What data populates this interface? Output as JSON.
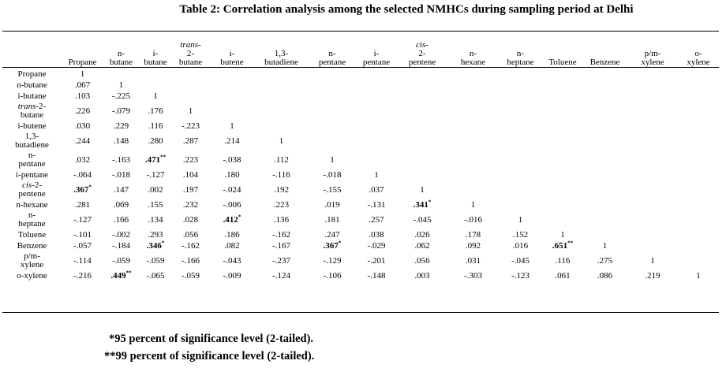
{
  "title": "Table 2: Correlation analysis among the selected NMHCs during sampling period at Delhi",
  "columns": [
    {
      "parts": [
        {
          "t": "Propane"
        }
      ]
    },
    {
      "parts": [
        {
          "t": "n-"
        },
        {
          "t": "butane"
        }
      ]
    },
    {
      "parts": [
        {
          "t": "i-"
        },
        {
          "t": "butane"
        }
      ]
    },
    {
      "parts": [
        {
          "t": "trans-",
          "i": true
        },
        {
          "t": "2-"
        },
        {
          "t": "butane"
        }
      ]
    },
    {
      "parts": [
        {
          "t": "i-"
        },
        {
          "t": "butene"
        }
      ]
    },
    {
      "parts": [
        {
          "t": "1,3-"
        },
        {
          "t": "butadiene"
        }
      ]
    },
    {
      "parts": [
        {
          "t": "n-"
        },
        {
          "t": "pentane"
        }
      ]
    },
    {
      "parts": [
        {
          "t": "i-"
        },
        {
          "t": "pentane"
        }
      ]
    },
    {
      "parts": [
        {
          "t": "cis-",
          "i": true
        },
        {
          "t": "2-"
        },
        {
          "t": "pentene"
        }
      ]
    },
    {
      "parts": [
        {
          "t": "n-"
        },
        {
          "t": "hexane"
        }
      ]
    },
    {
      "parts": [
        {
          "t": "n-"
        },
        {
          "t": "heptane"
        }
      ]
    },
    {
      "parts": [
        {
          "t": "Toluene"
        }
      ]
    },
    {
      "parts": [
        {
          "t": "Benzene"
        }
      ]
    },
    {
      "parts": [
        {
          "t": "p/m-"
        },
        {
          "t": "xylene"
        }
      ]
    },
    {
      "parts": [
        {
          "t": "o-"
        },
        {
          "t": "xylene"
        }
      ]
    }
  ],
  "rows": [
    {
      "label": [
        {
          "t": "Propane"
        }
      ],
      "cells": [
        "1"
      ]
    },
    {
      "label": [
        {
          "t": "n-butane"
        }
      ],
      "cells": [
        ".067",
        "1"
      ]
    },
    {
      "label": [
        {
          "t": "i-butane"
        }
      ],
      "cells": [
        ".103",
        "-.225",
        "1"
      ]
    },
    {
      "label": [
        {
          "t": "trans",
          "i": true
        },
        {
          "t": "-2-"
        },
        {
          "br": true
        },
        {
          "t": "butane"
        }
      ],
      "tall": true,
      "cells": [
        ".226",
        "-.079",
        ".176",
        "1"
      ]
    },
    {
      "label": [
        {
          "t": "i-butene"
        }
      ],
      "cells": [
        ".030",
        ".229",
        ".116",
        "-.223",
        "1"
      ]
    },
    {
      "label": [
        {
          "t": "1,3-"
        },
        {
          "br": true
        },
        {
          "t": "butadiene"
        }
      ],
      "tall": true,
      "cells": [
        ".244",
        ".148",
        ".280",
        ".287",
        ".214",
        "1"
      ]
    },
    {
      "label": [
        {
          "t": "n-"
        },
        {
          "br": true
        },
        {
          "t": "pentane"
        }
      ],
      "tall": true,
      "cells": [
        ".032",
        "-.163",
        {
          "v": ".471",
          "s": "**"
        },
        ".223",
        "-.038",
        ".112",
        "1"
      ]
    },
    {
      "label": [
        {
          "t": "i-pentane"
        }
      ],
      "cells": [
        "-.064",
        "-.018",
        "-.127",
        ".104",
        ".180",
        "-.116",
        "-.018",
        "1"
      ]
    },
    {
      "label": [
        {
          "t": "cis",
          "i": true
        },
        {
          "t": "-2-"
        },
        {
          "br": true
        },
        {
          "t": "pentene"
        }
      ],
      "tall": true,
      "cells": [
        {
          "v": ".367",
          "s": "*"
        },
        ".147",
        ".002",
        ".197",
        "-.024",
        ".192",
        "-.155",
        ".037",
        "1"
      ]
    },
    {
      "label": [
        {
          "t": "n-hexane"
        }
      ],
      "cells": [
        ".281",
        ".069",
        ".155",
        ".232",
        "-.006",
        ".223",
        ".019",
        "-.131",
        {
          "v": ".341",
          "s": "*"
        },
        "1"
      ]
    },
    {
      "label": [
        {
          "t": "n-"
        },
        {
          "br": true
        },
        {
          "t": "heptane"
        }
      ],
      "tall": true,
      "cells": [
        "-.127",
        ".166",
        ".134",
        ".028",
        {
          "v": ".412",
          "s": "*"
        },
        ".136",
        ".181",
        ".257",
        "-.045",
        "-.016",
        "1"
      ]
    },
    {
      "label": [
        {
          "t": "Toluene"
        }
      ],
      "cells": [
        "-.101",
        "-.002",
        ".293",
        ".056",
        ".186",
        "-.162",
        ".247",
        ".038",
        ".026",
        ".178",
        ".152",
        "1"
      ]
    },
    {
      "label": [
        {
          "t": "Benzene"
        }
      ],
      "cells": [
        "-.057",
        "-.184",
        {
          "v": ".346",
          "s": "*"
        },
        "-.162",
        ".082",
        "-.167",
        {
          "v": ".367",
          "s": "*"
        },
        "-.029",
        ".062",
        ".092",
        ".016",
        {
          "v": ".651",
          "s": "**"
        },
        "1"
      ]
    },
    {
      "label": [
        {
          "t": "p/m-"
        },
        {
          "br": true
        },
        {
          "t": "xylene"
        }
      ],
      "tall": true,
      "cells": [
        "-.114",
        "-.059",
        "-.059",
        "-.166",
        "-.043",
        "-.237",
        "-.129",
        "-.201",
        ".056",
        ".031",
        "-.045",
        ".116",
        ".275",
        "1"
      ]
    },
    {
      "label": [
        {
          "t": "o-xylene"
        }
      ],
      "cells": [
        "-.216",
        {
          "v": ".449",
          "s": "**"
        },
        "-.065",
        "-.059",
        "-.009",
        "-.124",
        "-.106",
        "-.148",
        ".003",
        "-.303",
        "-.123",
        ".061",
        ".086",
        ".219",
        "1"
      ]
    }
  ],
  "notes": [
    "*95 percent of significance level (2-tailed).",
    "**99 percent of significance level (2-tailed)."
  ]
}
